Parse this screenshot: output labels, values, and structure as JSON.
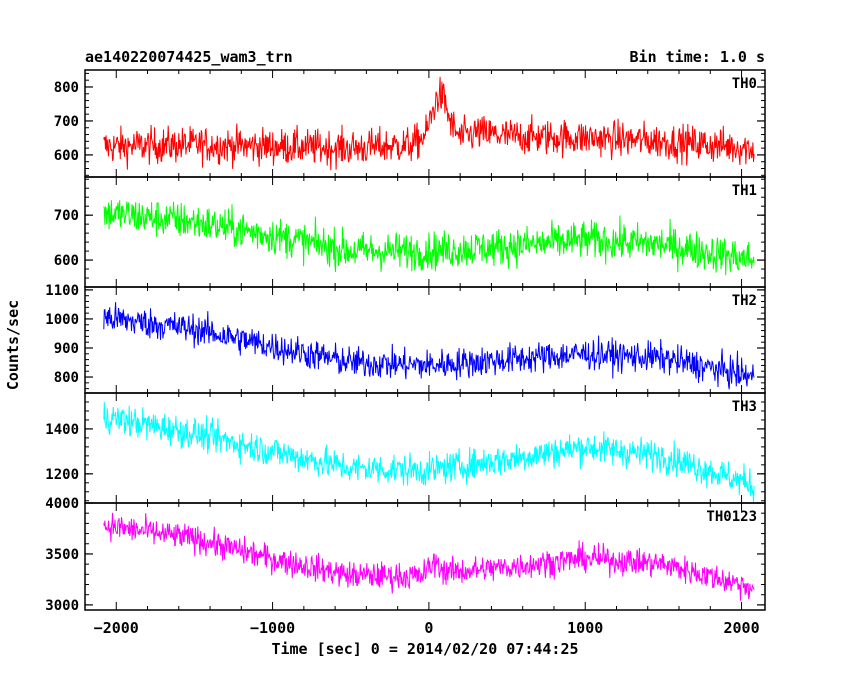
{
  "chart_data": {
    "type": "line",
    "title": "ae140220074425_wam3_trn",
    "subtitle": "Bin time: 1.0 s",
    "xlabel": "Time [sec] 0 = 2014/02/20 07:44:25",
    "ylabel": "Counts/sec",
    "xlim": [
      -2200,
      2150
    ],
    "x_ticks": [
      -2000,
      -1000,
      0,
      1000,
      2000
    ],
    "x_tick_labels": [
      "−2000",
      "−1000",
      "0",
      "1000",
      "2000"
    ],
    "x_range_data": [
      -2080,
      2080
    ],
    "panels": [
      {
        "name": "TH0",
        "color": "#ff0000",
        "ylim": [
          535,
          850
        ],
        "ticks": [
          600,
          700,
          800
        ],
        "tick_labels": [
          "600",
          "700",
          "800"
        ],
        "trend_x": [
          -2080,
          -1500,
          -1000,
          -500,
          -100,
          -20,
          20,
          60,
          100,
          140,
          200,
          300,
          500,
          1000,
          1500,
          2080
        ],
        "trend_y": [
          625,
          630,
          625,
          620,
          630,
          660,
          720,
          780,
          760,
          690,
          650,
          665,
          655,
          650,
          640,
          620
        ],
        "noise": 38
      },
      {
        "name": "TH1",
        "color": "#00ff00",
        "ylim": [
          540,
          785
        ],
        "ticks": [
          600,
          700
        ],
        "tick_labels": [
          "600",
          "700"
        ],
        "trend_x": [
          -2080,
          -1500,
          -1000,
          -500,
          0,
          500,
          1000,
          1500,
          2080
        ],
        "trend_y": [
          705,
          685,
          655,
          620,
          620,
          630,
          645,
          635,
          600
        ],
        "noise": 30
      },
      {
        "name": "TH2",
        "color": "#0000ff",
        "ylim": [
          745,
          1110
        ],
        "ticks": [
          800,
          900,
          1000,
          1100
        ],
        "tick_labels": [
          "800",
          "900",
          "1000",
          "1100"
        ],
        "trend_x": [
          -2080,
          -1500,
          -1000,
          -500,
          0,
          500,
          1000,
          1500,
          2080
        ],
        "trend_y": [
          1005,
          965,
          905,
          850,
          840,
          860,
          880,
          865,
          800
        ],
        "noise": 38
      },
      {
        "name": "TH3",
        "color": "#00ffff",
        "ylim": [
          1070,
          1560
        ],
        "ticks": [
          1200,
          1400
        ],
        "tick_labels": [
          "1200",
          "1400"
        ],
        "trend_x": [
          -2080,
          -1500,
          -1000,
          -500,
          0,
          500,
          1000,
          1500,
          2080
        ],
        "trend_y": [
          1455,
          1380,
          1300,
          1225,
          1215,
          1265,
          1320,
          1280,
          1150
        ],
        "noise": 50
      },
      {
        "name": "TH0123",
        "color": "#ff00ff",
        "ylim": [
          2950,
          4000
        ],
        "ticks": [
          3000,
          3500,
          4000
        ],
        "tick_labels": [
          "3000",
          "3500",
          "4000"
        ],
        "trend_x": [
          -2080,
          -1500,
          -1000,
          -500,
          -50,
          40,
          100,
          200,
          500,
          1000,
          1500,
          2080
        ],
        "trend_y": [
          3780,
          3650,
          3450,
          3290,
          3280,
          3420,
          3330,
          3330,
          3370,
          3460,
          3400,
          3170
        ],
        "noise": 95
      }
    ]
  }
}
